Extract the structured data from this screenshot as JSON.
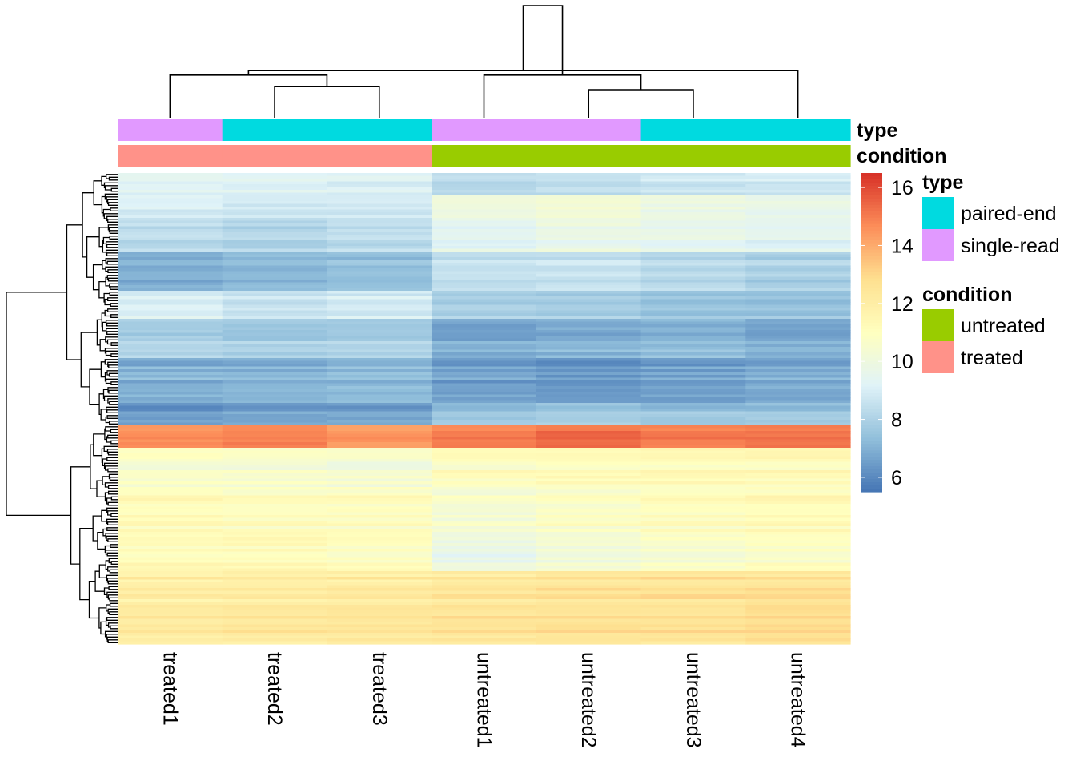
{
  "chart_data": {
    "type": "heatmap",
    "title": "",
    "xlabel": "",
    "ylabel": "",
    "columns": [
      "treated1",
      "treated2",
      "treated3",
      "untreated1",
      "untreated2",
      "untreated3",
      "untreated4"
    ],
    "annotation_tracks": [
      {
        "name": "type",
        "values": [
          "single-read",
          "paired-end",
          "paired-end",
          "single-read",
          "single-read",
          "paired-end",
          "paired-end"
        ]
      },
      {
        "name": "condition",
        "values": [
          "treated",
          "treated",
          "treated",
          "untreated",
          "untreated",
          "untreated",
          "untreated"
        ]
      }
    ],
    "legend": [
      {
        "title": "type",
        "entries": [
          {
            "label": "paired-end",
            "color": "#00DAE0"
          },
          {
            "label": "single-read",
            "color": "#E199FF"
          }
        ]
      },
      {
        "title": "condition",
        "entries": [
          {
            "label": "untreated",
            "color": "#99CC00"
          },
          {
            "label": "treated",
            "color": "#FF9289"
          }
        ]
      }
    ],
    "color_scale": {
      "min": 5.5,
      "max": 16.5,
      "ticks": [
        6,
        8,
        10,
        12,
        14,
        16
      ],
      "colors": [
        "#4575B4",
        "#91BFDB",
        "#E0F3F8",
        "#FFFFBF",
        "#FEE090",
        "#FC8D59",
        "#D73027"
      ]
    },
    "column_dendrogram": {
      "merges": [
        [
          4,
          5,
          0.25
        ],
        [
          1,
          2,
          0.28
        ],
        [
          0,
          8,
          0.38
        ],
        [
          3,
          7,
          0.38
        ],
        [
          6,
          9,
          0.42
        ],
        [
          10,
          11,
          1.0
        ]
      ]
    },
    "row_groups": [
      {
        "rows": 8,
        "values": [
          9.4,
          9.3,
          9.2,
          8.4,
          8.6,
          8.8,
          8.9
        ]
      },
      {
        "rows": 8,
        "values": [
          9.2,
          9.0,
          9.0,
          10.2,
          10.4,
          10.0,
          9.8
        ]
      },
      {
        "rows": 12,
        "values": [
          8.4,
          8.2,
          8.4,
          9.4,
          9.8,
          9.6,
          9.4
        ]
      },
      {
        "rows": 14,
        "values": [
          7.0,
          7.3,
          7.5,
          8.5,
          8.6,
          8.3,
          8.0
        ]
      },
      {
        "rows": 10,
        "values": [
          9.3,
          8.8,
          9.1,
          8.1,
          8.0,
          7.8,
          7.6
        ]
      },
      {
        "rows": 14,
        "values": [
          8.0,
          7.8,
          7.9,
          6.8,
          7.0,
          7.2,
          6.9
        ]
      },
      {
        "rows": 16,
        "values": [
          7.0,
          7.1,
          7.3,
          6.6,
          6.4,
          6.6,
          6.8
        ]
      },
      {
        "rows": 8,
        "values": [
          6.4,
          6.6,
          6.6,
          7.4,
          7.7,
          7.5,
          7.6
        ]
      },
      {
        "rows": 8,
        "values": [
          14.6,
          14.9,
          14.4,
          15.0,
          15.3,
          15.0,
          15.2
        ]
      },
      {
        "rows": 14,
        "values": [
          10.6,
          10.5,
          10.3,
          11.0,
          11.1,
          11.2,
          11.2
        ]
      },
      {
        "rows": 16,
        "values": [
          11.2,
          11.0,
          11.0,
          10.4,
          10.8,
          11.0,
          11.2
        ]
      },
      {
        "rows": 14,
        "values": [
          11.2,
          11.2,
          11.0,
          9.8,
          10.2,
          10.6,
          10.8
        ]
      },
      {
        "rows": 12,
        "values": [
          12.0,
          12.1,
          12.2,
          12.4,
          12.6,
          12.6,
          12.7
        ]
      },
      {
        "rows": 14,
        "values": [
          12.2,
          12.3,
          12.4,
          12.5,
          12.6,
          12.6,
          12.8
        ]
      }
    ]
  }
}
